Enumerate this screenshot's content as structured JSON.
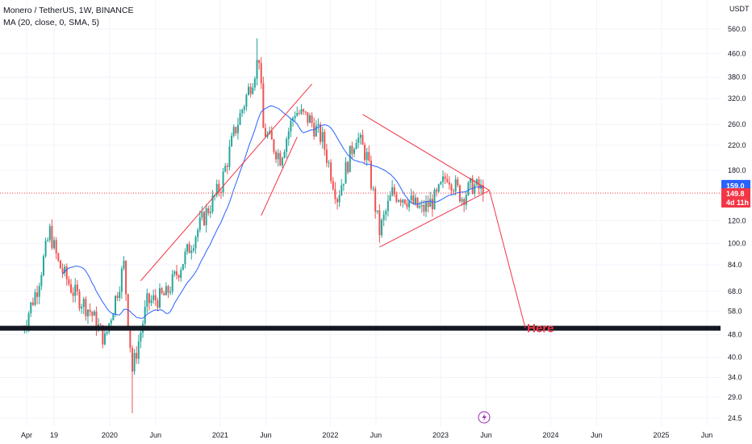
{
  "legend": {
    "title": "Monero / TetherUS, 1W, BINANCE",
    "indicator": "MA (20, close, 0, SMA, 5)"
  },
  "currency": "USDT",
  "annotation": "Here",
  "colors": {
    "up": "#26a69a",
    "down": "#ef5350",
    "ma": "#2962ff",
    "trendline": "#f23645",
    "support": "#131722",
    "grid": "#f0f3fa",
    "price_badge": "#2962ff",
    "countdown_badge": "#f23645"
  },
  "chart_data": {
    "type": "candlestick",
    "title": "Monero / TetherUS, 1W, BINANCE",
    "y_scale": "log",
    "ylim": [
      23.5,
      620
    ],
    "y_ticks": [
      560,
      460,
      380,
      320,
      260,
      220,
      180,
      120,
      100,
      84,
      68,
      58,
      48,
      40,
      34,
      29,
      24.5
    ],
    "y_tick_labels": [
      "560.0",
      "460.0",
      "380.0",
      "320.0",
      "260.0",
      "220.0",
      "180.0",
      "120.0",
      "100.0",
      "84.0",
      "68.0",
      "58.0",
      "48.0",
      "40.0",
      "34.0",
      "29.0",
      "24.5"
    ],
    "x_labels": [
      {
        "label": "Apr",
        "date": "2019-04-01"
      },
      {
        "label": "19",
        "date": "2019-07-01"
      },
      {
        "label": "2020",
        "date": "2020-01-01"
      },
      {
        "label": "Jun",
        "date": "2020-06-01"
      },
      {
        "label": "2021",
        "date": "2021-01-01"
      },
      {
        "label": "Jun",
        "date": "2021-06-01"
      },
      {
        "label": "2022",
        "date": "2022-01-01"
      },
      {
        "label": "Jun",
        "date": "2022-06-01"
      },
      {
        "label": "2023",
        "date": "2023-01-01"
      },
      {
        "label": "Jun",
        "date": "2023-06-01"
      },
      {
        "label": "2024",
        "date": "2024-01-01"
      },
      {
        "label": "Jun",
        "date": "2024-06-01"
      },
      {
        "label": "2025",
        "date": "2025-01-01"
      },
      {
        "label": "Jun",
        "date": "2025-06-01"
      }
    ],
    "close_path": [
      {
        "date": "2019-03-18",
        "close": 50
      },
      {
        "date": "2019-05-06",
        "close": 70
      },
      {
        "date": "2019-06-17",
        "close": 110
      },
      {
        "date": "2019-07-15",
        "close": 85
      },
      {
        "date": "2019-09-02",
        "close": 68
      },
      {
        "date": "2019-10-28",
        "close": 58
      },
      {
        "date": "2019-12-16",
        "close": 46
      },
      {
        "date": "2020-02-17",
        "close": 84
      },
      {
        "date": "2020-03-16",
        "close": 36
      },
      {
        "date": "2020-05-04",
        "close": 62
      },
      {
        "date": "2020-07-06",
        "close": 66
      },
      {
        "date": "2020-09-07",
        "close": 90
      },
      {
        "date": "2020-11-02",
        "close": 120
      },
      {
        "date": "2021-01-04",
        "close": 160
      },
      {
        "date": "2021-02-15",
        "close": 240
      },
      {
        "date": "2021-04-19",
        "close": 380
      },
      {
        "date": "2021-05-10",
        "close": 450
      },
      {
        "date": "2021-05-24",
        "close": 250
      },
      {
        "date": "2021-07-19",
        "close": 200
      },
      {
        "date": "2021-09-06",
        "close": 290
      },
      {
        "date": "2021-10-25",
        "close": 270
      },
      {
        "date": "2021-12-06",
        "close": 230
      },
      {
        "date": "2022-01-24",
        "close": 145
      },
      {
        "date": "2022-03-28",
        "close": 240
      },
      {
        "date": "2022-05-02",
        "close": 200
      },
      {
        "date": "2022-06-13",
        "close": 110
      },
      {
        "date": "2022-07-25",
        "close": 150
      },
      {
        "date": "2022-09-05",
        "close": 145
      },
      {
        "date": "2022-10-31",
        "close": 130
      },
      {
        "date": "2022-12-19",
        "close": 145
      },
      {
        "date": "2023-01-23",
        "close": 175
      },
      {
        "date": "2023-03-13",
        "close": 145
      },
      {
        "date": "2023-04-17",
        "close": 160
      },
      {
        "date": "2023-05-29",
        "close": 150
      }
    ],
    "extremes": {
      "high": 520,
      "low": 25.5
    },
    "moving_average": {
      "name": "MA (20, close, 0, SMA, 5)",
      "period": 20
    },
    "last_price": {
      "value": 159.0,
      "label": "159.0"
    },
    "current_price": {
      "value": 149.8,
      "label": "149.8",
      "countdown": "4d 11h"
    },
    "support_level": 50.5,
    "trendlines": [
      {
        "from": {
          "date": "2020-04-13",
          "value": 74
        },
        "to": {
          "date": "2021-11-01",
          "value": 360
        }
      },
      {
        "from": {
          "date": "2021-05-17",
          "value": 125
        },
        "to": {
          "date": "2021-09-13",
          "value": 235
        }
      },
      {
        "from": {
          "date": "2022-04-18",
          "value": 282
        },
        "to": {
          "date": "2023-06-12",
          "value": 153
        }
      },
      {
        "from": {
          "date": "2022-06-13",
          "value": 97
        },
        "to": {
          "date": "2023-06-12",
          "value": 153
        }
      },
      {
        "from": {
          "date": "2023-06-12",
          "value": 153
        },
        "to": {
          "date": "2023-10-09",
          "value": 50.5
        }
      }
    ]
  }
}
